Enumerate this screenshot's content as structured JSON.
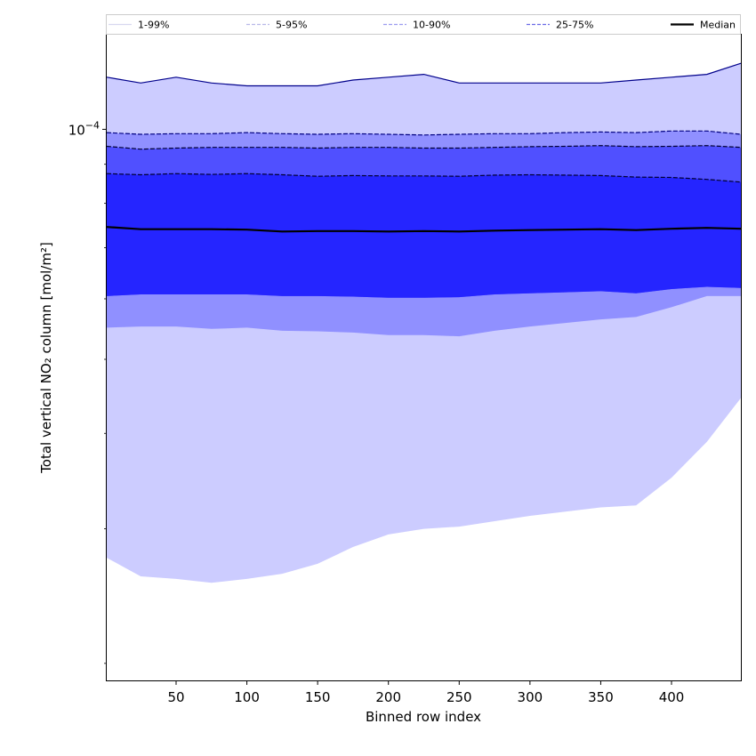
{
  "chart_data": {
    "type": "area",
    "xlabel": "Binned row index",
    "ylabel": "Total vertical NO₂ column [mol/m²]",
    "yscale": "log",
    "xlim": [
      1,
      449
    ],
    "ylim": [
      1.9e-05,
      0.000133
    ],
    "x_ticks": [
      50,
      100,
      150,
      200,
      250,
      300,
      350,
      400
    ],
    "x_tick_labels": [
      "50",
      "100",
      "150",
      "200",
      "250",
      "300",
      "350",
      "400"
    ],
    "y_ticks": [
      0.0001
    ],
    "y_tick_labels": [
      {
        "base": "10",
        "exp": "−4"
      }
    ],
    "y_minor_ticks": [
      2e-05,
      3e-05,
      4e-05,
      5e-05,
      6e-05,
      7e-05,
      8e-05,
      9e-05
    ],
    "grid": false,
    "legend": {
      "placement": "top, above plot area",
      "entries": [
        {
          "label": "1-99%",
          "color": "#d8d8f0",
          "style": "solid"
        },
        {
          "label": "5-95%",
          "color": "#b8b8e8",
          "style": "dashed"
        },
        {
          "label": "10-90%",
          "color": "#9c9cf0",
          "style": "dashed"
        },
        {
          "label": "25-75%",
          "color": "#6a6ae6",
          "style": "dashed"
        },
        {
          "label": "Median",
          "color": "#000000",
          "style": "solid"
        }
      ]
    },
    "x": [
      1,
      25,
      50,
      75,
      100,
      125,
      150,
      175,
      200,
      225,
      250,
      275,
      300,
      325,
      350,
      375,
      400,
      425,
      449
    ],
    "bands": [
      {
        "name": "1-99%",
        "color": "#ccccff",
        "lower": [
          2.75e-05,
          2.6e-05,
          2.58e-05,
          2.55e-05,
          2.58e-05,
          2.62e-05,
          2.7e-05,
          2.84e-05,
          2.95e-05,
          3e-05,
          3.02e-05,
          3.07e-05,
          3.12e-05,
          3.16e-05,
          3.2e-05,
          3.22e-05,
          3.5e-05,
          3.9e-05,
          4.45e-05
        ],
        "upper": [
          0.000117,
          0.000115,
          0.000117,
          0.000115,
          0.000114,
          0.000114,
          0.000114,
          0.000116,
          0.000117,
          0.000118,
          0.000115,
          0.000115,
          0.000115,
          0.000115,
          0.000115,
          0.000116,
          0.000117,
          0.000118,
          0.000122
        ]
      },
      {
        "name": "5-95%",
        "color": "#9090ff",
        "lower": [
          5.5e-05,
          5.52e-05,
          5.52e-05,
          5.48e-05,
          5.5e-05,
          5.45e-05,
          5.44e-05,
          5.42e-05,
          5.38e-05,
          5.38e-05,
          5.36e-05,
          5.45e-05,
          5.52e-05,
          5.58e-05,
          5.64e-05,
          5.68e-05,
          5.85e-05,
          6.05e-05,
          6.05e-05
        ],
        "upper": [
          9.9e-05,
          9.85e-05,
          9.87e-05,
          9.87e-05,
          9.9e-05,
          9.87e-05,
          9.85e-05,
          9.87e-05,
          9.85e-05,
          9.83e-05,
          9.85e-05,
          9.87e-05,
          9.87e-05,
          9.9e-05,
          9.92e-05,
          9.9e-05,
          9.95e-05,
          9.95e-05,
          9.85e-05
        ]
      },
      {
        "name": "10-90%",
        "color": "#5050ff",
        "lower": [
          6.05e-05,
          6.08e-05,
          6.08e-05,
          6.08e-05,
          6.08e-05,
          6.05e-05,
          6.05e-05,
          6.04e-05,
          6.02e-05,
          6.02e-05,
          6.03e-05,
          6.08e-05,
          6.1e-05,
          6.12e-05,
          6.14e-05,
          6.1e-05,
          6.18e-05,
          6.22e-05,
          6.2e-05
        ],
        "upper": [
          9.5e-05,
          9.42e-05,
          9.45e-05,
          9.47e-05,
          9.47e-05,
          9.47e-05,
          9.45e-05,
          9.47e-05,
          9.47e-05,
          9.45e-05,
          9.45e-05,
          9.47e-05,
          9.49e-05,
          9.5e-05,
          9.52e-05,
          9.49e-05,
          9.5e-05,
          9.52e-05,
          9.47e-05
        ]
      },
      {
        "name": "25-75%",
        "color": "#2525ff",
        "lower": [
          6.05e-05,
          6.08e-05,
          6.08e-05,
          6.08e-05,
          6.08e-05,
          6.05e-05,
          6.05e-05,
          6.04e-05,
          6.02e-05,
          6.02e-05,
          6.03e-05,
          6.08e-05,
          6.1e-05,
          6.12e-05,
          6.14e-05,
          6.1e-05,
          6.18e-05,
          6.22e-05,
          6.2e-05
        ],
        "upper": [
          8.75e-05,
          8.72e-05,
          8.75e-05,
          8.73e-05,
          8.75e-05,
          8.72e-05,
          8.68e-05,
          8.7e-05,
          8.69e-05,
          8.69e-05,
          8.68e-05,
          8.71e-05,
          8.72e-05,
          8.71e-05,
          8.7e-05,
          8.66e-05,
          8.65e-05,
          8.6e-05,
          8.53e-05
        ]
      }
    ],
    "median": [
      7.45e-05,
      7.4e-05,
      7.4e-05,
      7.4e-05,
      7.39e-05,
      7.35e-05,
      7.36e-05,
      7.36e-05,
      7.35e-05,
      7.36e-05,
      7.35e-05,
      7.37e-05,
      7.38e-05,
      7.39e-05,
      7.4e-05,
      7.38e-05,
      7.41e-05,
      7.43e-05,
      7.41e-05
    ],
    "band_edge_lines": [
      {
        "name": "1-99% upper edge",
        "color": "#00008b",
        "style": "solid",
        "band": 0,
        "edge": "upper"
      },
      {
        "name": "5-95% upper edge",
        "color": "#000080",
        "style": "dashed",
        "band": 1,
        "edge": "upper"
      },
      {
        "name": "10-90% upper edge",
        "color": "#000033",
        "style": "dashed",
        "band": 2,
        "edge": "upper"
      },
      {
        "name": "25-75% upper edge",
        "color": "#000033",
        "style": "dashed",
        "band": 3,
        "edge": "upper"
      }
    ]
  }
}
